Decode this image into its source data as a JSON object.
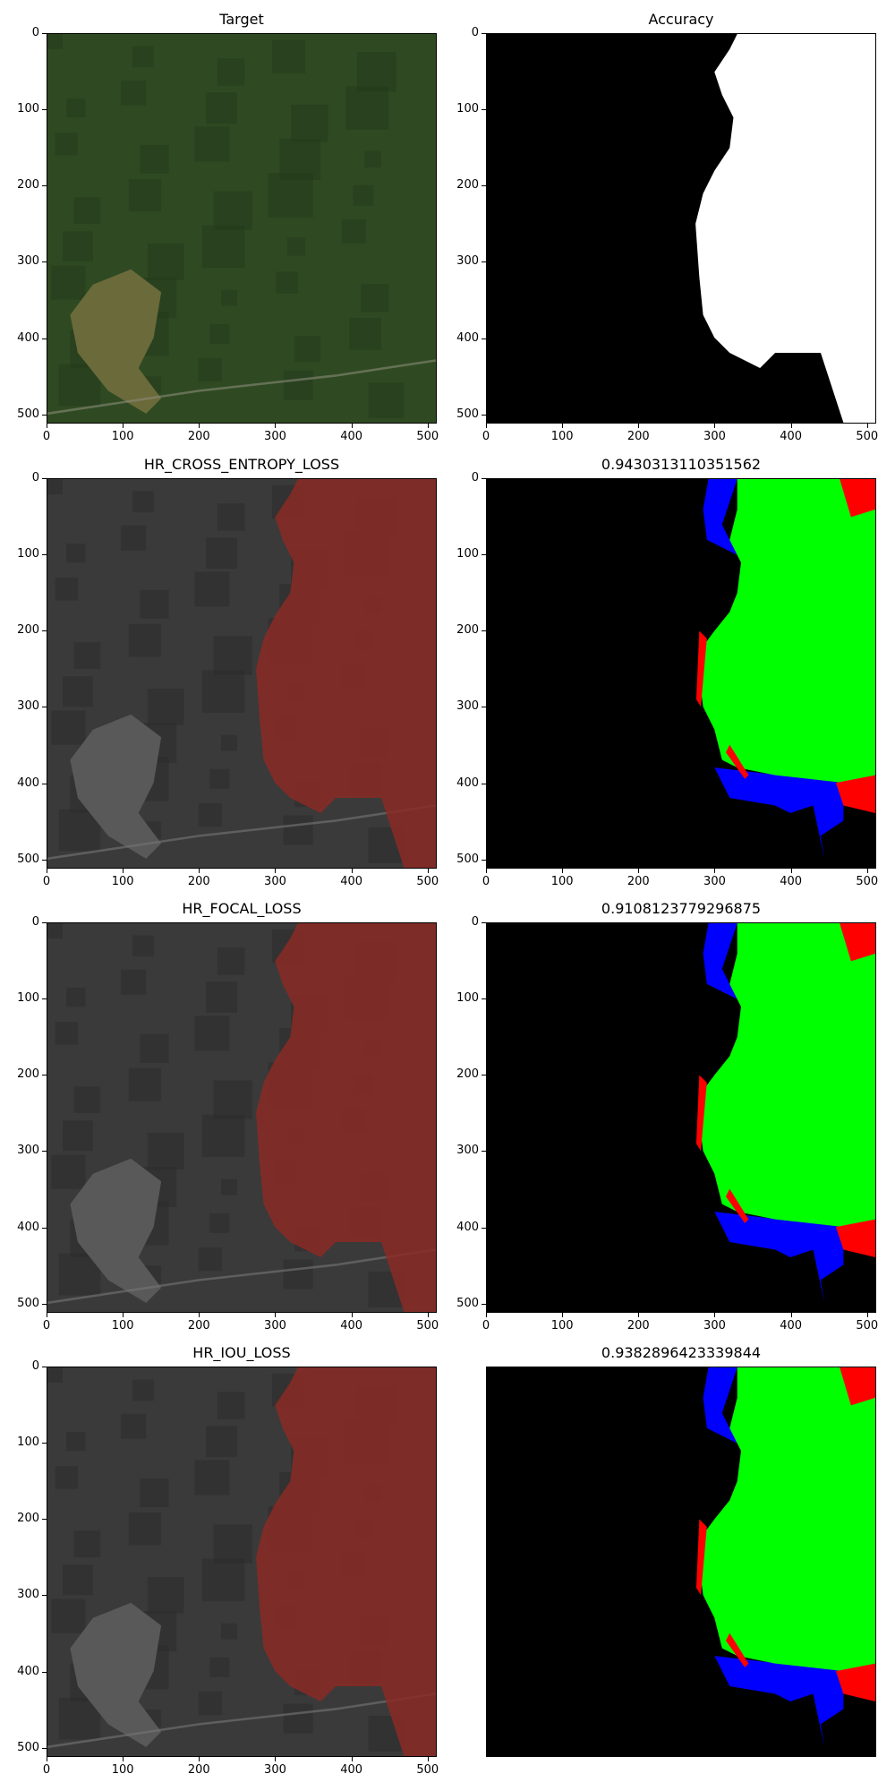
{
  "panels": [
    {
      "id": "target",
      "title": "Target",
      "kind": "aerial",
      "show_axes": true
    },
    {
      "id": "accuracy",
      "title": "Accuracy",
      "kind": "mask",
      "show_axes": true
    },
    {
      "id": "ce_overlay",
      "title": "HR_CROSS_ENTROPY_LOSS",
      "kind": "overlay",
      "show_axes": true
    },
    {
      "id": "ce_eval",
      "title": "0.9430313110351562",
      "kind": "eval",
      "show_axes": true
    },
    {
      "id": "focal_overlay",
      "title": "HR_FOCAL_LOSS",
      "kind": "overlay",
      "show_axes": true
    },
    {
      "id": "focal_eval",
      "title": "0.9108123779296875",
      "kind": "eval",
      "show_axes": true
    },
    {
      "id": "iou_overlay",
      "title": "HR_IOU_LOSS",
      "kind": "overlay",
      "show_axes": true
    },
    {
      "id": "iou_eval",
      "title": "0.9382896423339844",
      "kind": "eval",
      "show_axes": false
    }
  ],
  "axis_ticks": [
    "0",
    "100",
    "200",
    "300",
    "400",
    "500"
  ],
  "colors": {
    "mask_fg": "#ffffff",
    "mask_bg": "#000000",
    "true_positive": "#00ff00",
    "false_positive": "#ff0000",
    "false_negative": "#0000ff",
    "overlay_red": "#8b2a26",
    "aerial_green": "#2f4a22",
    "aerial_field": "#6b6a3a",
    "gray_base": "#3a3a3a"
  }
}
